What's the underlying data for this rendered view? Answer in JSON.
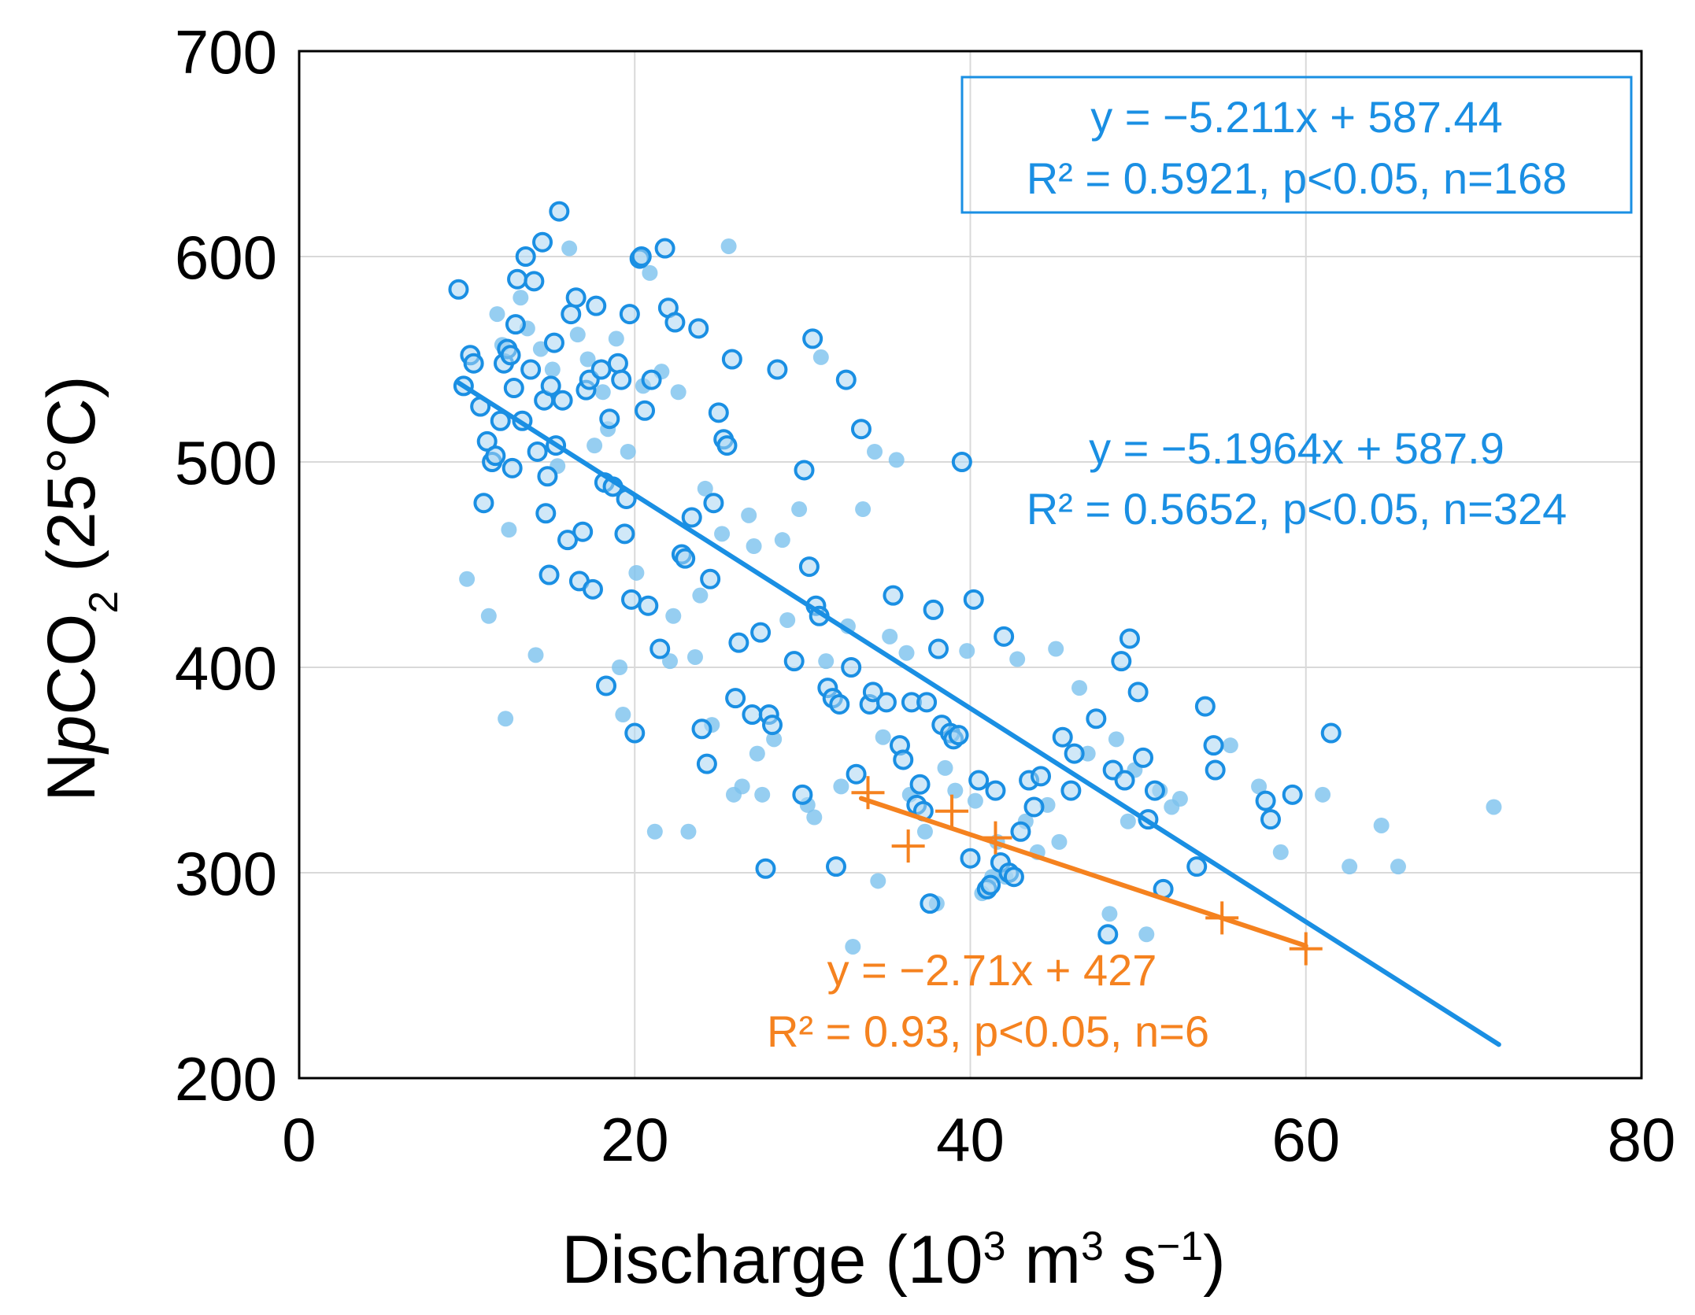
{
  "chart_data": {
    "type": "scatter",
    "xlabel": {
      "main": "Discharge (10",
      "sup1": "3",
      "mid": " m",
      "sup2": "3",
      "tail": " s",
      "sup3": "−1",
      "end": ")"
    },
    "ylabel": {
      "pre": "N",
      "italic": "p",
      "post": "CO",
      "sub": "2",
      "tail": " (25°C)"
    },
    "xlim": [
      0,
      80
    ],
    "ylim": [
      200,
      700
    ],
    "x_ticks": [
      0,
      20,
      40,
      60,
      80
    ],
    "x_tick_labels": [
      "0",
      "20",
      "40",
      "60",
      "80"
    ],
    "y_ticks": [
      200,
      300,
      400,
      500,
      600,
      700
    ],
    "y_tick_labels": [
      "200",
      "300",
      "400",
      "500",
      "600",
      "700"
    ],
    "grid": true,
    "colors": {
      "blue": "#1a8fe3",
      "light_blue": "#7cc2ee",
      "orange": "#f5821f",
      "frame": "#000000",
      "grid": "#d9d9d9"
    },
    "series": [
      {
        "marker": "open-circle",
        "color": "#1a8fe3",
        "points": [
          [
            9.5,
            584
          ],
          [
            9.8,
            537
          ],
          [
            10.2,
            552
          ],
          [
            10.4,
            548
          ],
          [
            10.8,
            527
          ],
          [
            11.0,
            480
          ],
          [
            11.2,
            510
          ],
          [
            11.5,
            500
          ],
          [
            11.7,
            503
          ],
          [
            12.0,
            520
          ],
          [
            12.2,
            548
          ],
          [
            12.4,
            555
          ],
          [
            12.6,
            552
          ],
          [
            12.7,
            497
          ],
          [
            12.8,
            536
          ],
          [
            12.9,
            567
          ],
          [
            13.0,
            589
          ],
          [
            13.3,
            520
          ],
          [
            13.5,
            600
          ],
          [
            13.8,
            545
          ],
          [
            14.0,
            588
          ],
          [
            14.2,
            505
          ],
          [
            14.5,
            607
          ],
          [
            14.6,
            530
          ],
          [
            14.7,
            475
          ],
          [
            14.8,
            493
          ],
          [
            14.9,
            445
          ],
          [
            15.0,
            537
          ],
          [
            15.2,
            558
          ],
          [
            15.3,
            508
          ],
          [
            15.5,
            622
          ],
          [
            15.7,
            530
          ],
          [
            16.0,
            462
          ],
          [
            16.2,
            572
          ],
          [
            16.5,
            580
          ],
          [
            16.7,
            442
          ],
          [
            16.9,
            466
          ],
          [
            17.1,
            535
          ],
          [
            17.3,
            540
          ],
          [
            17.5,
            438
          ],
          [
            17.7,
            576
          ],
          [
            18.0,
            545
          ],
          [
            18.2,
            490
          ],
          [
            18.3,
            391
          ],
          [
            18.5,
            521
          ],
          [
            18.7,
            488
          ],
          [
            19.0,
            548
          ],
          [
            19.2,
            540
          ],
          [
            19.4,
            465
          ],
          [
            19.5,
            482
          ],
          [
            19.7,
            572
          ],
          [
            19.8,
            433
          ],
          [
            20.0,
            368
          ],
          [
            20.3,
            599
          ],
          [
            20.4,
            600
          ],
          [
            20.6,
            525
          ],
          [
            20.8,
            430
          ],
          [
            21.0,
            540
          ],
          [
            21.5,
            409
          ],
          [
            21.8,
            604
          ],
          [
            22.0,
            575
          ],
          [
            22.4,
            568
          ],
          [
            22.8,
            455
          ],
          [
            23.0,
            453
          ],
          [
            23.4,
            473
          ],
          [
            23.8,
            565
          ],
          [
            24.0,
            370
          ],
          [
            24.3,
            353
          ],
          [
            24.5,
            443
          ],
          [
            24.7,
            480
          ],
          [
            25.0,
            524
          ],
          [
            25.3,
            511
          ],
          [
            25.5,
            508
          ],
          [
            25.8,
            550
          ],
          [
            26.0,
            385
          ],
          [
            26.2,
            412
          ],
          [
            27.0,
            377
          ],
          [
            27.5,
            417
          ],
          [
            27.8,
            302
          ],
          [
            28.0,
            377
          ],
          [
            28.2,
            372
          ],
          [
            28.5,
            545
          ],
          [
            29.5,
            403
          ],
          [
            30.0,
            338
          ],
          [
            30.1,
            496
          ],
          [
            30.4,
            449
          ],
          [
            30.6,
            560
          ],
          [
            30.8,
            430
          ],
          [
            31.0,
            425
          ],
          [
            31.5,
            390
          ],
          [
            31.8,
            385
          ],
          [
            32.0,
            303
          ],
          [
            32.2,
            382
          ],
          [
            32.6,
            540
          ],
          [
            32.9,
            400
          ],
          [
            33.2,
            348
          ],
          [
            33.5,
            516
          ],
          [
            34.0,
            382
          ],
          [
            34.2,
            388
          ],
          [
            35.0,
            383
          ],
          [
            35.4,
            435
          ],
          [
            35.8,
            362
          ],
          [
            36.0,
            355
          ],
          [
            36.5,
            383
          ],
          [
            36.8,
            333
          ],
          [
            37.0,
            343
          ],
          [
            37.2,
            330
          ],
          [
            37.4,
            383
          ],
          [
            37.6,
            285
          ],
          [
            37.8,
            428
          ],
          [
            38.1,
            409
          ],
          [
            38.3,
            372
          ],
          [
            38.8,
            368
          ],
          [
            39.0,
            365
          ],
          [
            39.3,
            367
          ],
          [
            39.5,
            500
          ],
          [
            40.0,
            307
          ],
          [
            40.2,
            433
          ],
          [
            40.5,
            345
          ],
          [
            41.0,
            292
          ],
          [
            41.2,
            294
          ],
          [
            41.5,
            340
          ],
          [
            41.8,
            305
          ],
          [
            42.0,
            415
          ],
          [
            42.3,
            300
          ],
          [
            42.6,
            298
          ],
          [
            43.0,
            320
          ],
          [
            43.5,
            345
          ],
          [
            43.8,
            332
          ],
          [
            44.2,
            347
          ],
          [
            45.5,
            366
          ],
          [
            46.0,
            340
          ],
          [
            46.2,
            358
          ],
          [
            47.5,
            375
          ],
          [
            48.2,
            270
          ],
          [
            48.5,
            350
          ],
          [
            49.0,
            403
          ],
          [
            49.2,
            345
          ],
          [
            49.5,
            414
          ],
          [
            50.0,
            388
          ],
          [
            50.3,
            356
          ],
          [
            50.6,
            326
          ],
          [
            51.0,
            340
          ],
          [
            51.5,
            292
          ],
          [
            53.5,
            303
          ],
          [
            54.0,
            381
          ],
          [
            54.5,
            362
          ],
          [
            54.6,
            350
          ],
          [
            57.6,
            335
          ],
          [
            57.9,
            326
          ],
          [
            59.2,
            338
          ],
          [
            61.5,
            368
          ]
        ]
      },
      {
        "marker": "filled-circle",
        "color": "#7cc2ee",
        "points": [
          [
            10.0,
            443
          ],
          [
            11.3,
            425
          ],
          [
            11.8,
            572
          ],
          [
            12.1,
            557
          ],
          [
            12.3,
            375
          ],
          [
            12.5,
            467
          ],
          [
            13.2,
            580
          ],
          [
            13.6,
            565
          ],
          [
            14.1,
            406
          ],
          [
            14.4,
            555
          ],
          [
            15.1,
            545
          ],
          [
            15.4,
            498
          ],
          [
            16.1,
            604
          ],
          [
            16.6,
            562
          ],
          [
            17.2,
            550
          ],
          [
            17.6,
            508
          ],
          [
            18.1,
            534
          ],
          [
            18.4,
            516
          ],
          [
            18.9,
            560
          ],
          [
            19.1,
            400
          ],
          [
            19.3,
            377
          ],
          [
            19.6,
            505
          ],
          [
            20.1,
            446
          ],
          [
            20.5,
            537
          ],
          [
            20.9,
            592
          ],
          [
            21.2,
            320
          ],
          [
            21.6,
            544
          ],
          [
            22.1,
            403
          ],
          [
            22.3,
            425
          ],
          [
            22.6,
            534
          ],
          [
            23.2,
            320
          ],
          [
            23.6,
            405
          ],
          [
            23.9,
            435
          ],
          [
            24.2,
            487
          ],
          [
            24.6,
            372
          ],
          [
            25.2,
            465
          ],
          [
            25.6,
            605
          ],
          [
            25.9,
            338
          ],
          [
            26.4,
            342
          ],
          [
            26.8,
            474
          ],
          [
            27.1,
            459
          ],
          [
            27.3,
            358
          ],
          [
            27.6,
            338
          ],
          [
            28.3,
            365
          ],
          [
            28.8,
            462
          ],
          [
            29.1,
            423
          ],
          [
            29.8,
            477
          ],
          [
            30.3,
            333
          ],
          [
            30.7,
            327
          ],
          [
            31.1,
            551
          ],
          [
            31.4,
            403
          ],
          [
            32.3,
            342
          ],
          [
            32.7,
            420
          ],
          [
            33.0,
            264
          ],
          [
            33.6,
            477
          ],
          [
            34.3,
            505
          ],
          [
            34.5,
            296
          ],
          [
            34.8,
            366
          ],
          [
            35.2,
            415
          ],
          [
            35.6,
            501
          ],
          [
            36.2,
            407
          ],
          [
            36.4,
            338
          ],
          [
            37.3,
            320
          ],
          [
            38.0,
            285
          ],
          [
            38.5,
            351
          ],
          [
            39.1,
            340
          ],
          [
            39.8,
            408
          ],
          [
            40.3,
            335
          ],
          [
            40.7,
            290
          ],
          [
            41.3,
            298
          ],
          [
            41.6,
            315
          ],
          [
            42.1,
            298
          ],
          [
            42.8,
            404
          ],
          [
            43.3,
            325
          ],
          [
            44.0,
            310
          ],
          [
            44.6,
            333
          ],
          [
            45.1,
            409
          ],
          [
            45.3,
            315
          ],
          [
            46.5,
            390
          ],
          [
            47.0,
            358
          ],
          [
            48.3,
            280
          ],
          [
            48.7,
            365
          ],
          [
            49.4,
            325
          ],
          [
            49.8,
            350
          ],
          [
            50.5,
            270
          ],
          [
            51.3,
            340
          ],
          [
            52.0,
            332
          ],
          [
            52.5,
            336
          ],
          [
            55.5,
            362
          ],
          [
            57.2,
            342
          ],
          [
            58.5,
            310
          ],
          [
            61.0,
            338
          ],
          [
            62.6,
            303
          ],
          [
            64.5,
            323
          ],
          [
            65.5,
            303
          ],
          [
            71.2,
            332
          ]
        ]
      },
      {
        "marker": "plus",
        "color": "#f5821f",
        "points": [
          [
            33.9,
            339
          ],
          [
            36.3,
            313
          ],
          [
            38.9,
            330
          ],
          [
            41.5,
            317
          ],
          [
            55.0,
            278
          ],
          [
            60.0,
            263
          ]
        ]
      }
    ],
    "fit_lines": [
      {
        "color": "#1a8fe3",
        "slope": -5.1964,
        "intercept": 587.9,
        "x_range": [
          9.5,
          71.5
        ]
      },
      {
        "color": "#f5821f",
        "slope": -2.71,
        "intercept": 427,
        "x_range": [
          33.5,
          60.0
        ]
      }
    ],
    "annotations": [
      {
        "color": "#1a8fe3",
        "boxed": true,
        "line1": "y = −5.211x + 587.44",
        "line2": "R² = 0.5921, p<0.05, n=168"
      },
      {
        "color": "#1a8fe3",
        "boxed": false,
        "line1": "y = −5.1964x + 587.9",
        "line2": "R² = 0.5652, p<0.05, n=324"
      },
      {
        "color": "#f5821f",
        "boxed": false,
        "line1": "y = −2.71x + 427",
        "line2": "R² = 0.93, p<0.05, n=6"
      }
    ]
  }
}
